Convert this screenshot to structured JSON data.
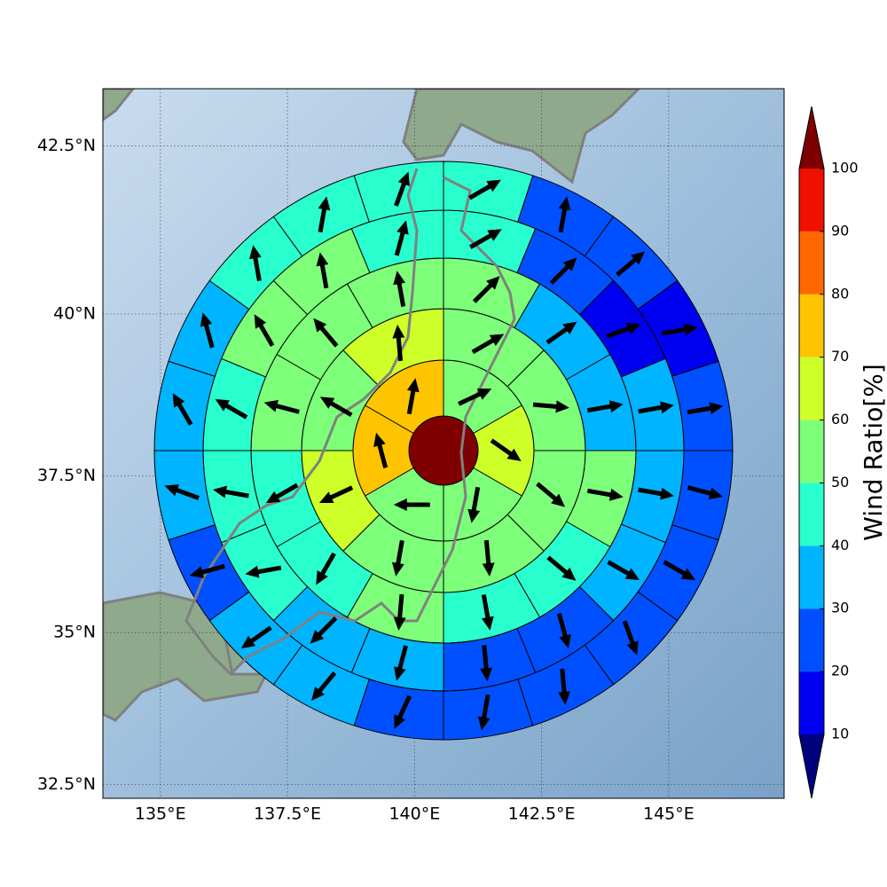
{
  "chart_data": {
    "type": "polar-sector",
    "projection": "mercator",
    "grid": true,
    "xlim": [
      133.87,
      147.27
    ],
    "ylim": [
      32.27,
      43.33
    ],
    "xticks": [
      {
        "value": 135,
        "label": "135°E"
      },
      {
        "value": 137.5,
        "label": "137.5°E"
      },
      {
        "value": 140,
        "label": "140°E"
      },
      {
        "value": 142.5,
        "label": "142.5°E"
      },
      {
        "value": 145,
        "label": "145°E"
      }
    ],
    "yticks": [
      {
        "value": 32.5,
        "label": "32.5°N"
      },
      {
        "value": 35,
        "label": "35°N"
      },
      {
        "value": 37.5,
        "label": "37.5°N"
      },
      {
        "value": 40,
        "label": "40°N"
      },
      {
        "value": 42.5,
        "label": "42.5°N"
      }
    ],
    "center": {
      "value": 105
    },
    "rings": [
      {
        "values": [
          55,
          65,
          55,
          55,
          75,
          75
        ],
        "directions": [
          65,
          125,
          190,
          270,
          345,
          10
        ]
      },
      {
        "values": [
          55,
          55,
          55,
          55,
          55,
          65,
          55,
          65
        ],
        "directions": [
          60,
          95,
          130,
          175,
          190,
          245,
          300,
          355
        ]
      },
      {
        "values": [
          55,
          35,
          35,
          55,
          45,
          45,
          55,
          45,
          45,
          55,
          55,
          55
        ],
        "directions": [
          45,
          55,
          80,
          100,
          130,
          170,
          185,
          210,
          240,
          285,
          320,
          350
        ]
      },
      {
        "values": [
          45,
          25,
          15,
          35,
          35,
          35,
          25,
          25,
          35,
          35,
          45,
          45,
          45,
          55,
          55,
          45
        ],
        "directions": [
          60,
          45,
          70,
          80,
          100,
          120,
          165,
          175,
          195,
          225,
          260,
          280,
          300,
          330,
          350,
          15
        ]
      },
      {
        "values": [
          45,
          25,
          25,
          15,
          25,
          25,
          25,
          25,
          25,
          25,
          25,
          35,
          35,
          25,
          35,
          35,
          35,
          45,
          45,
          45
        ],
        "directions": [
          60,
          10,
          50,
          80,
          80,
          105,
          120,
          160,
          175,
          190,
          205,
          220,
          235,
          255,
          290,
          330,
          345,
          350,
          10,
          20
        ]
      }
    ],
    "colorbar": {
      "label": "Wind Ratio[%]",
      "ticks": [
        10,
        20,
        30,
        40,
        50,
        60,
        70,
        80,
        90,
        100
      ],
      "colors": [
        "#00007f",
        "#0000f0",
        "#0050ff",
        "#00b4ff",
        "#29ffce",
        "#7dff7a",
        "#ceff29",
        "#ffc400",
        "#ff6800",
        "#f01000",
        "#7f0000"
      ],
      "extend": "both"
    }
  }
}
